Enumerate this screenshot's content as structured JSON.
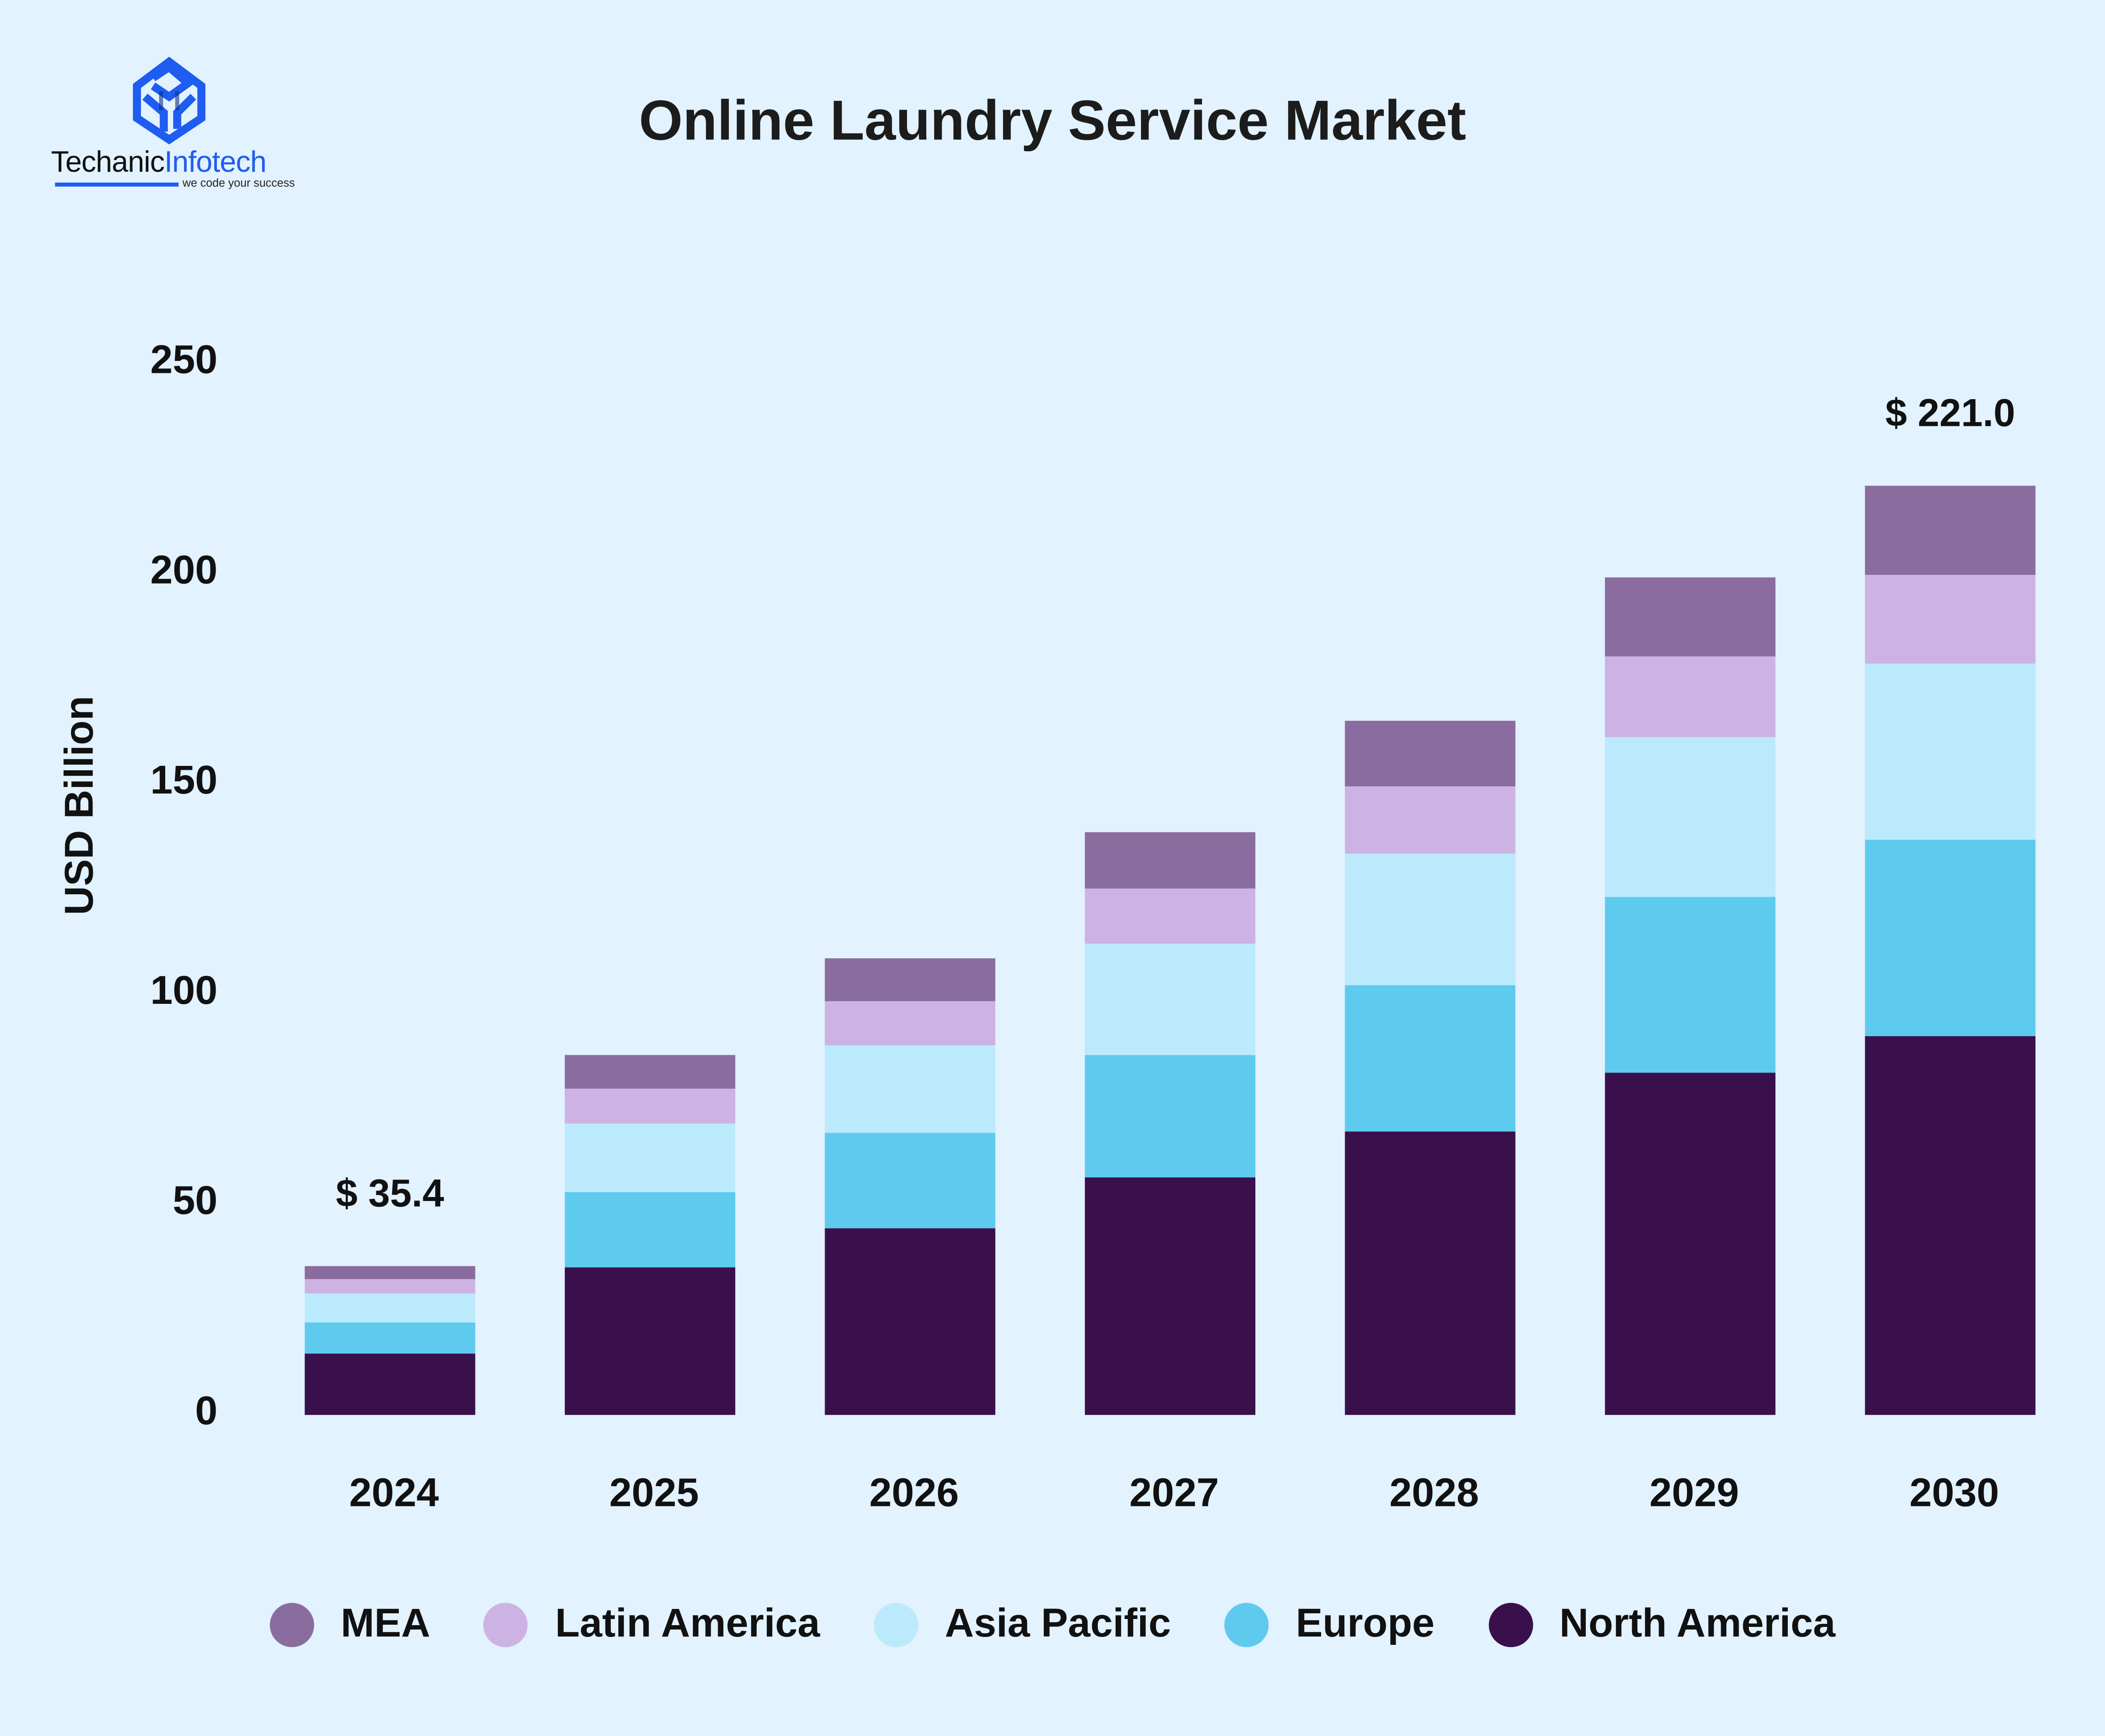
{
  "brand": {
    "name_part1": "Techanic",
    "name_part2": "Infotech",
    "tagline": "we code your success",
    "logo_icon": "cube-logo-icon",
    "brand_color": "#1f5cf0"
  },
  "chart_data": {
    "type": "bar",
    "stacked": true,
    "title": "Online Laundry Service Market",
    "xlabel": "",
    "ylabel": "USD Billion",
    "ylim": [
      0,
      250
    ],
    "yticks": [
      0,
      50,
      100,
      150,
      200,
      250
    ],
    "grid": false,
    "categories": [
      "2024",
      "2025",
      "2026",
      "2027",
      "2028",
      "2029",
      "2030"
    ],
    "series": [
      {
        "name": "North America",
        "color": "#3a104c",
        "values": [
          14.6,
          35.1,
          44.4,
          56.5,
          67.4,
          81.4,
          90.1
        ]
      },
      {
        "name": "Europe",
        "color": "#5ecbee",
        "values": [
          7.4,
          17.9,
          22.7,
          29.1,
          34.8,
          41.8,
          46.7
        ]
      },
      {
        "name": "Asia Pacific",
        "color": "#bbeafc",
        "values": [
          6.9,
          16.3,
          20.8,
          26.5,
          31.3,
          38.0,
          41.9
        ]
      },
      {
        "name": "Latin America",
        "color": "#cdb2e4",
        "values": [
          3.4,
          8.3,
          10.5,
          13.1,
          16.0,
          19.2,
          21.1
        ]
      },
      {
        "name": "MEA",
        "color": "#8b6c9e",
        "values": [
          3.1,
          8.0,
          10.2,
          13.4,
          15.6,
          18.8,
          21.2
        ]
      }
    ],
    "annotations": [
      {
        "category": "2024",
        "text": "$ 35.4",
        "value": 35.4
      },
      {
        "category": "2030",
        "text": "$ 221.0",
        "value": 221.0
      }
    ],
    "legend": {
      "position": "bottom",
      "order": [
        "MEA",
        "Latin America",
        "Asia Pacific",
        "Europe",
        "North America"
      ]
    }
  }
}
